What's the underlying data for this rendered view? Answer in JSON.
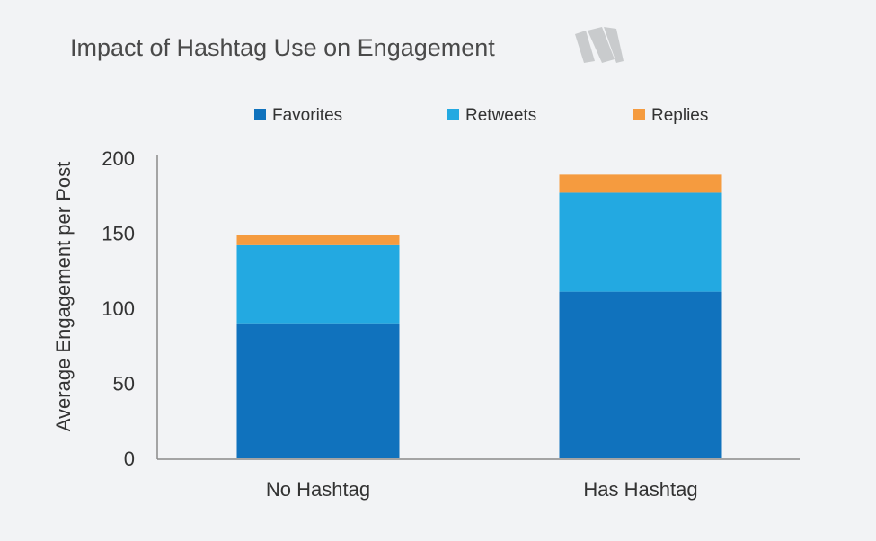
{
  "chart_data": {
    "type": "bar",
    "stacked": true,
    "title": "Impact of Hashtag Use on Engagement",
    "xlabel": "",
    "ylabel": "Average Engagement per Post",
    "categories": [
      "No Hashtag",
      "Has Hashtag"
    ],
    "series": [
      {
        "name": "Favorites",
        "color": "#1072bd",
        "values": [
          90,
          111
        ]
      },
      {
        "name": "Retweets",
        "color": "#23a9e1",
        "values": [
          52,
          66
        ]
      },
      {
        "name": "Replies",
        "color": "#f59b3f",
        "values": [
          7,
          12
        ]
      }
    ],
    "ylim": [
      0,
      200
    ],
    "yticks": [
      0,
      50,
      100,
      150,
      200
    ],
    "grid": false,
    "legend_position": "top"
  },
  "logo": {
    "name": "brand-logo-icon",
    "color": "#c9cbcd"
  }
}
